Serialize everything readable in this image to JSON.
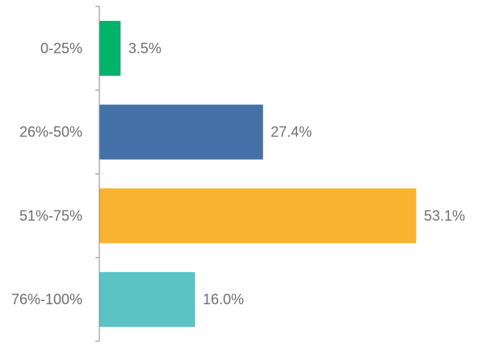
{
  "chart_data": {
    "type": "bar",
    "orientation": "horizontal",
    "categories": [
      "0-25%",
      "26%-50%",
      "51%-75%",
      "76%-100%"
    ],
    "values": [
      3.5,
      27.4,
      53.1,
      16.0
    ],
    "value_labels": [
      "3.5%",
      "27.4%",
      "53.1%",
      "16.0%"
    ],
    "colors": [
      "#00b26a",
      "#4472a8",
      "#f9b330",
      "#5bc3c4"
    ],
    "title": "",
    "xlabel": "",
    "ylabel": "",
    "xlim": [
      0,
      55
    ],
    "grid": false,
    "legend": "none"
  }
}
